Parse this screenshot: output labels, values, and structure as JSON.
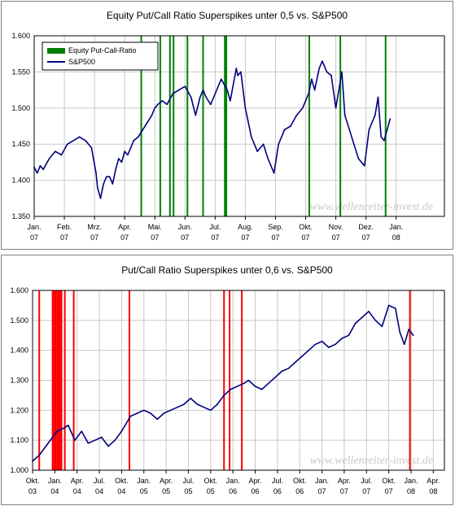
{
  "chart_data": [
    {
      "type": "line",
      "title": "Equity Put/Call Ratio Superspikes unter 0,5 vs. S&P500",
      "watermark": "www.wellenreiter-invest.de",
      "ylim": [
        1.35,
        1.6
      ],
      "yticks": [
        "1.350",
        "1.400",
        "1.450",
        "1.500",
        "1.550",
        "1.600"
      ],
      "xlim": [
        0,
        13.6
      ],
      "xticks": [
        {
          "month": "Jan.",
          "year": "07"
        },
        {
          "month": "Feb.",
          "year": "07"
        },
        {
          "month": "Mrz.",
          "year": "07"
        },
        {
          "month": "Apr.",
          "year": "07"
        },
        {
          "month": "Mai.",
          "year": "07"
        },
        {
          "month": "Jun.",
          "year": "07"
        },
        {
          "month": "Jul.",
          "year": "07"
        },
        {
          "month": "Aug.",
          "year": "07"
        },
        {
          "month": "Sep.",
          "year": "07"
        },
        {
          "month": "Okt.",
          "year": "07"
        },
        {
          "month": "Nov.",
          "year": "07"
        },
        {
          "month": "Dez.",
          "year": "07"
        },
        {
          "month": "Jan.",
          "year": "08"
        }
      ],
      "grid": true,
      "legend": {
        "position": "top-left",
        "entries": [
          {
            "label": "Equity Put-Call-Ratio",
            "color": "#008000",
            "kind": "bar"
          },
          {
            "label": "S&P500",
            "color": "#000080",
            "kind": "line"
          }
        ]
      },
      "spike_color": "#008000",
      "spikes": [
        3.55,
        4.18,
        4.5,
        4.62,
        5.08,
        5.6,
        6.32,
        6.37,
        9.12,
        10.15,
        11.65
      ],
      "series": [
        {
          "name": "S&P500",
          "color": "#000080",
          "x": [
            0,
            0.1,
            0.2,
            0.3,
            0.5,
            0.7,
            0.9,
            1.1,
            1.3,
            1.5,
            1.7,
            1.9,
            2.05,
            2.1,
            2.2,
            2.3,
            2.4,
            2.5,
            2.6,
            2.7,
            2.8,
            2.9,
            3.0,
            3.1,
            3.2,
            3.3,
            3.45,
            3.6,
            3.75,
            3.9,
            4.0,
            4.1,
            4.25,
            4.4,
            4.6,
            4.8,
            5.0,
            5.2,
            5.35,
            5.5,
            5.6,
            5.7,
            5.85,
            6.0,
            6.2,
            6.4,
            6.5,
            6.7,
            6.75,
            6.85,
            7.0,
            7.2,
            7.4,
            7.6,
            7.75,
            7.95,
            8.1,
            8.3,
            8.5,
            8.7,
            8.9,
            9.1,
            9.2,
            9.3,
            9.45,
            9.55,
            9.7,
            9.85,
            10.0,
            10.2,
            10.3,
            10.45,
            10.6,
            10.75,
            10.95,
            11.1,
            11.3,
            11.4,
            11.5,
            11.6,
            11.7,
            11.8
          ],
          "values": [
            1.418,
            1.41,
            1.42,
            1.415,
            1.43,
            1.44,
            1.435,
            1.45,
            1.455,
            1.46,
            1.455,
            1.445,
            1.41,
            1.39,
            1.375,
            1.395,
            1.405,
            1.405,
            1.395,
            1.415,
            1.43,
            1.425,
            1.44,
            1.435,
            1.445,
            1.455,
            1.46,
            1.47,
            1.48,
            1.49,
            1.5,
            1.505,
            1.51,
            1.505,
            1.52,
            1.525,
            1.53,
            1.515,
            1.49,
            1.515,
            1.525,
            1.515,
            1.505,
            1.52,
            1.54,
            1.525,
            1.51,
            1.555,
            1.545,
            1.55,
            1.5,
            1.46,
            1.44,
            1.45,
            1.43,
            1.41,
            1.45,
            1.47,
            1.475,
            1.49,
            1.5,
            1.52,
            1.54,
            1.525,
            1.555,
            1.565,
            1.55,
            1.545,
            1.5,
            1.55,
            1.49,
            1.47,
            1.45,
            1.43,
            1.42,
            1.47,
            1.49,
            1.515,
            1.46,
            1.455,
            1.47,
            1.485
          ]
        }
      ]
    },
    {
      "type": "line",
      "title": "Put/Call Ratio Superspikes unter 0,6 vs. S&P500",
      "watermark": "www.wellenreiter-invest.de",
      "ylim": [
        1.0,
        1.6
      ],
      "yticks": [
        "1.000",
        "1.100",
        "1.200",
        "1.300",
        "1.400",
        "1.500",
        "1.600"
      ],
      "xlim": [
        0,
        18.5
      ],
      "xticks": [
        {
          "month": "Okt.",
          "year": "03"
        },
        {
          "month": "Jan.",
          "year": "04"
        },
        {
          "month": "Apr.",
          "year": "04"
        },
        {
          "month": "Jul.",
          "year": "04"
        },
        {
          "month": "Okt.",
          "year": "04"
        },
        {
          "month": "Jan.",
          "year": "05"
        },
        {
          "month": "Apr.",
          "year": "05"
        },
        {
          "month": "Jul.",
          "year": "05"
        },
        {
          "month": "Okt.",
          "year": "05"
        },
        {
          "month": "Jan.",
          "year": "06"
        },
        {
          "month": "Apr.",
          "year": "06"
        },
        {
          "month": "Jul.",
          "year": "06"
        },
        {
          "month": "Okt.",
          "year": "06"
        },
        {
          "month": "Jan.",
          "year": "07"
        },
        {
          "month": "Apr.",
          "year": "07"
        },
        {
          "month": "Jul.",
          "year": "07"
        },
        {
          "month": "Okt.",
          "year": "07"
        },
        {
          "month": "Jan.",
          "year": "08"
        },
        {
          "month": "Apr.",
          "year": "08"
        }
      ],
      "grid": true,
      "spike_color": "#ff0000",
      "spikes": [
        0.3,
        0.9,
        0.97,
        1.03,
        1.1,
        1.17,
        1.23,
        1.3,
        1.45,
        1.85,
        4.35,
        8.6,
        8.85,
        9.4,
        16.95
      ],
      "series": [
        {
          "name": "S&P500",
          "color": "#000080",
          "x": [
            0,
            0.3,
            0.6,
            0.9,
            1.1,
            1.4,
            1.6,
            1.9,
            2.2,
            2.5,
            2.8,
            3.1,
            3.4,
            3.7,
            4.0,
            4.4,
            4.7,
            5.0,
            5.3,
            5.6,
            5.9,
            6.2,
            6.5,
            6.8,
            7.1,
            7.4,
            7.7,
            8.0,
            8.3,
            8.6,
            8.9,
            9.2,
            9.5,
            9.7,
            10.0,
            10.3,
            10.6,
            10.9,
            11.2,
            11.5,
            11.8,
            12.1,
            12.4,
            12.7,
            13.0,
            13.3,
            13.6,
            13.9,
            14.2,
            14.5,
            14.8,
            15.1,
            15.4,
            15.7,
            16.0,
            16.3,
            16.5,
            16.7,
            16.9,
            17.1
          ],
          "values": [
            1.03,
            1.05,
            1.08,
            1.11,
            1.13,
            1.14,
            1.15,
            1.1,
            1.13,
            1.09,
            1.1,
            1.11,
            1.08,
            1.1,
            1.13,
            1.18,
            1.19,
            1.2,
            1.19,
            1.17,
            1.19,
            1.2,
            1.21,
            1.22,
            1.24,
            1.22,
            1.21,
            1.2,
            1.22,
            1.25,
            1.27,
            1.28,
            1.29,
            1.3,
            1.28,
            1.27,
            1.29,
            1.31,
            1.33,
            1.34,
            1.36,
            1.38,
            1.4,
            1.42,
            1.43,
            1.41,
            1.42,
            1.44,
            1.45,
            1.49,
            1.51,
            1.53,
            1.5,
            1.48,
            1.55,
            1.54,
            1.46,
            1.42,
            1.47,
            1.45
          ]
        }
      ]
    }
  ]
}
